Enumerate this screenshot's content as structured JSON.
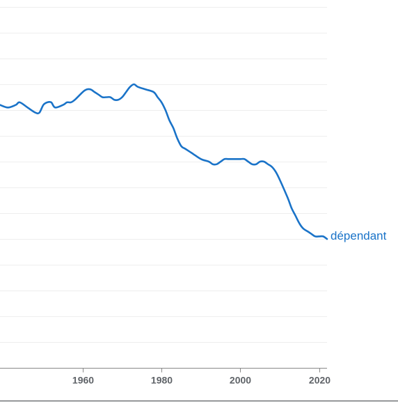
{
  "chart_data": {
    "type": "line",
    "title": "",
    "xlabel": "",
    "ylabel": "",
    "xlim": [
      1939,
      2022
    ],
    "ylim": [
      0,
      14
    ],
    "grid": true,
    "legend": "inline-right",
    "x_ticks": [
      1960,
      1980,
      2000,
      2020
    ],
    "x_tick_labels": [
      "1960",
      "1980",
      "2000",
      "2020"
    ],
    "series": [
      {
        "name": "dépendant",
        "color": "#1a73c8",
        "x": [
          1939,
          1941,
          1943,
          1944,
          1946,
          1948,
          1949,
          1950,
          1951,
          1952,
          1953,
          1955,
          1956,
          1957,
          1958,
          1960,
          1961,
          1962,
          1963,
          1964,
          1965,
          1966,
          1967,
          1968,
          1969,
          1970,
          1971,
          1972,
          1973,
          1974,
          1976,
          1978,
          1979,
          1980,
          1981,
          1982,
          1983,
          1984,
          1985,
          1986,
          1987,
          1988,
          1990,
          1992,
          1993,
          1994,
          1995,
          1996,
          1997,
          1998,
          2000,
          2001,
          2002,
          2003,
          2004,
          2005,
          2006,
          2007,
          2008,
          2009,
          2010,
          2012,
          2013,
          2014,
          2015,
          2016,
          2017,
          2018,
          2019,
          2020,
          2021,
          2022
        ],
        "y": [
          10.2,
          10.1,
          10.2,
          10.3,
          10.1,
          9.9,
          9.9,
          10.2,
          10.3,
          10.3,
          10.1,
          10.2,
          10.3,
          10.3,
          10.4,
          10.7,
          10.8,
          10.8,
          10.7,
          10.6,
          10.5,
          10.5,
          10.5,
          10.4,
          10.4,
          10.5,
          10.7,
          10.9,
          11.0,
          10.9,
          10.8,
          10.7,
          10.5,
          10.3,
          10.0,
          9.6,
          9.3,
          8.9,
          8.6,
          8.5,
          8.4,
          8.3,
          8.1,
          8.0,
          7.9,
          7.9,
          8.0,
          8.1,
          8.1,
          8.1,
          8.1,
          8.1,
          8.0,
          7.9,
          7.9,
          8.0,
          8.0,
          7.9,
          7.8,
          7.6,
          7.3,
          6.6,
          6.2,
          5.9,
          5.6,
          5.4,
          5.3,
          5.2,
          5.1,
          5.1,
          5.1,
          5.0
        ]
      }
    ]
  }
}
